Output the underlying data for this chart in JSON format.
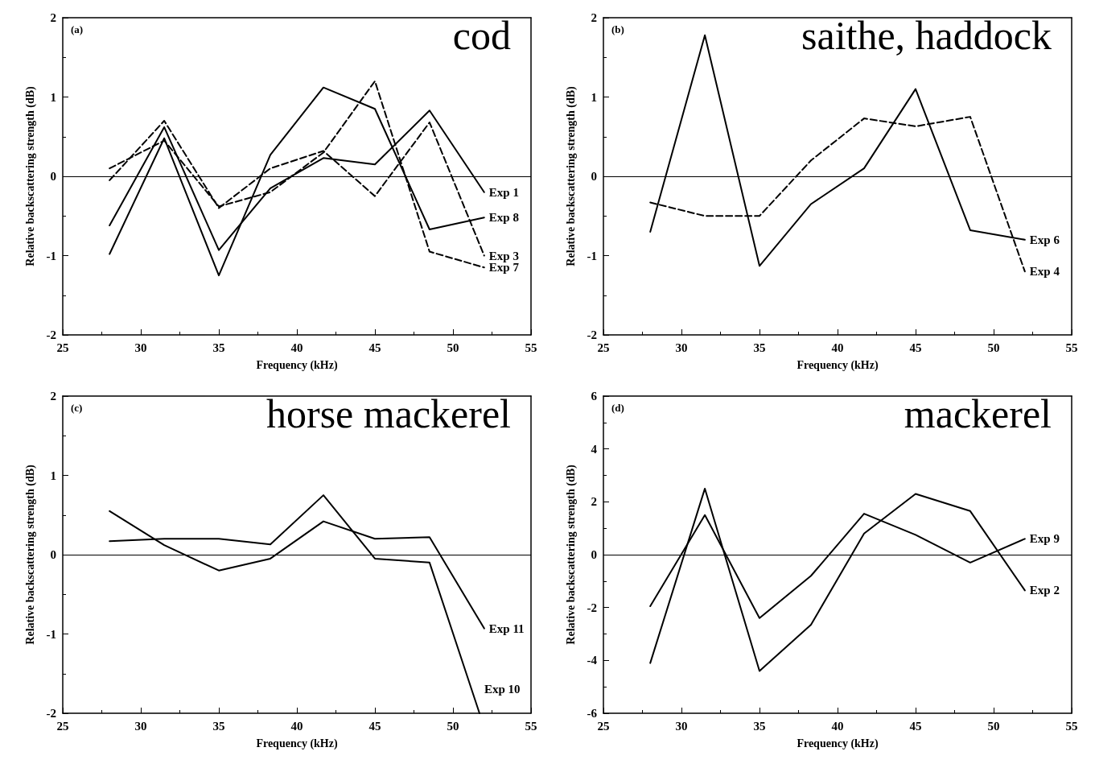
{
  "chart_data": [
    {
      "type": "line",
      "title": "cod",
      "annotations": [
        "(a)"
      ],
      "xlabel": "Frequency (kHz)",
      "ylabel": "Relative backscattering strength (dB)",
      "x": [
        28,
        31.5,
        35,
        38.3,
        41.7,
        45,
        48.5,
        52
      ],
      "xlim": [
        25,
        55
      ],
      "xticks": [
        25,
        30,
        35,
        40,
        45,
        50,
        55
      ],
      "ylim": [
        -2,
        2
      ],
      "yticks": [
        -2,
        -1,
        0,
        1,
        2
      ],
      "grid": false,
      "legend": false,
      "marker": "none",
      "ref_lines": [
        {
          "axis": "y",
          "value": 0,
          "color": "#000000"
        }
      ],
      "series": [
        {
          "name": "Exp 1",
          "color": "#000000",
          "line_style": "solid",
          "values": [
            -0.62,
            0.62,
            -0.93,
            -0.15,
            0.23,
            0.15,
            0.83,
            -0.2
          ]
        },
        {
          "name": "Exp 8",
          "color": "#000000",
          "line_style": "solid",
          "values": [
            -0.98,
            0.48,
            -1.25,
            0.27,
            1.12,
            0.85,
            -0.67,
            -0.52
          ]
        },
        {
          "name": "Exp 3",
          "color": "#000000",
          "line_style": "dashed",
          "values": [
            -0.05,
            0.7,
            -0.4,
            0.1,
            0.32,
            -0.25,
            0.68,
            -1.0
          ]
        },
        {
          "name": "Exp 7",
          "color": "#000000",
          "line_style": "dashed",
          "values": [
            0.1,
            0.45,
            -0.38,
            -0.2,
            0.3,
            1.2,
            -0.95,
            -1.15
          ]
        }
      ]
    },
    {
      "type": "line",
      "title": "saithe, haddock",
      "annotations": [
        "(b)"
      ],
      "xlabel": "Frequency (kHz)",
      "ylabel": "Relative backscattering strength (dB)",
      "x": [
        28,
        31.5,
        35,
        38.3,
        41.7,
        45,
        48.5,
        52
      ],
      "xlim": [
        25,
        55
      ],
      "xticks": [
        25,
        30,
        35,
        40,
        45,
        50,
        55
      ],
      "ylim": [
        -2,
        2
      ],
      "yticks": [
        -2,
        -1,
        0,
        1,
        2
      ],
      "grid": false,
      "legend": false,
      "marker": "none",
      "ref_lines": [
        {
          "axis": "y",
          "value": 0,
          "color": "#000000"
        }
      ],
      "series": [
        {
          "name": "Exp 4",
          "color": "#000000",
          "line_style": "dashed",
          "values": [
            -0.33,
            -0.5,
            -0.5,
            0.2,
            0.73,
            0.63,
            0.75,
            -1.2
          ]
        },
        {
          "name": "Exp 6",
          "color": "#000000",
          "line_style": "solid",
          "values": [
            -0.7,
            1.78,
            -1.13,
            -0.35,
            0.1,
            1.1,
            -0.68,
            -0.8
          ]
        }
      ]
    },
    {
      "type": "line",
      "title": "horse mackerel",
      "annotations": [
        "(c)"
      ],
      "xlabel": "Frequency (kHz)",
      "ylabel": "Relative backscattering strength (dB)",
      "x": [
        28,
        31.5,
        35,
        38.3,
        41.7,
        45,
        48.5,
        52
      ],
      "xlim": [
        25,
        55
      ],
      "xticks": [
        25,
        30,
        35,
        40,
        45,
        50,
        55
      ],
      "ylim": [
        -2,
        2
      ],
      "yticks": [
        -2,
        -1,
        0,
        1,
        2
      ],
      "grid": false,
      "legend": false,
      "marker": "none",
      "ref_lines": [
        {
          "axis": "y",
          "value": 0,
          "color": "#000000"
        }
      ],
      "series": [
        {
          "name": "Exp 11",
          "color": "#000000",
          "line_style": "solid",
          "values": [
            0.55,
            0.12,
            -0.2,
            -0.05,
            0.42,
            0.2,
            0.22,
            -0.93
          ]
        },
        {
          "name": "Exp 10",
          "color": "#000000",
          "line_style": "solid",
          "x": [
            28,
            31.5,
            35,
            38.3,
            41.7,
            45,
            48.5,
            51.7
          ],
          "values": [
            0.17,
            0.2,
            0.2,
            0.13,
            0.75,
            -0.05,
            -0.1,
            -2
          ]
        }
      ]
    },
    {
      "type": "line",
      "title": "mackerel",
      "annotations": [
        "(d)"
      ],
      "xlabel": "Frequency (kHz)",
      "ylabel": "Relative backscattering strength (dB)",
      "x": [
        28,
        31.5,
        35,
        38.3,
        41.7,
        45,
        48.5,
        52
      ],
      "xlim": [
        25,
        55
      ],
      "xticks": [
        25,
        30,
        35,
        40,
        45,
        50,
        55
      ],
      "ylim": [
        -6,
        6
      ],
      "yticks": [
        -6,
        -4,
        -2,
        0,
        2,
        4,
        6
      ],
      "grid": false,
      "legend": false,
      "marker": "none",
      "ref_lines": [
        {
          "axis": "y",
          "value": 0,
          "color": "#000000"
        }
      ],
      "series": [
        {
          "name": "Exp 9",
          "color": "#000000",
          "line_style": "solid",
          "values": [
            -1.95,
            1.5,
            -2.4,
            -0.8,
            1.55,
            0.75,
            -0.3,
            0.6
          ]
        },
        {
          "name": "Exp 2",
          "color": "#000000",
          "line_style": "solid",
          "values": [
            -4.1,
            2.5,
            -4.4,
            -2.65,
            0.8,
            2.3,
            1.65,
            -1.35
          ]
        }
      ]
    }
  ]
}
